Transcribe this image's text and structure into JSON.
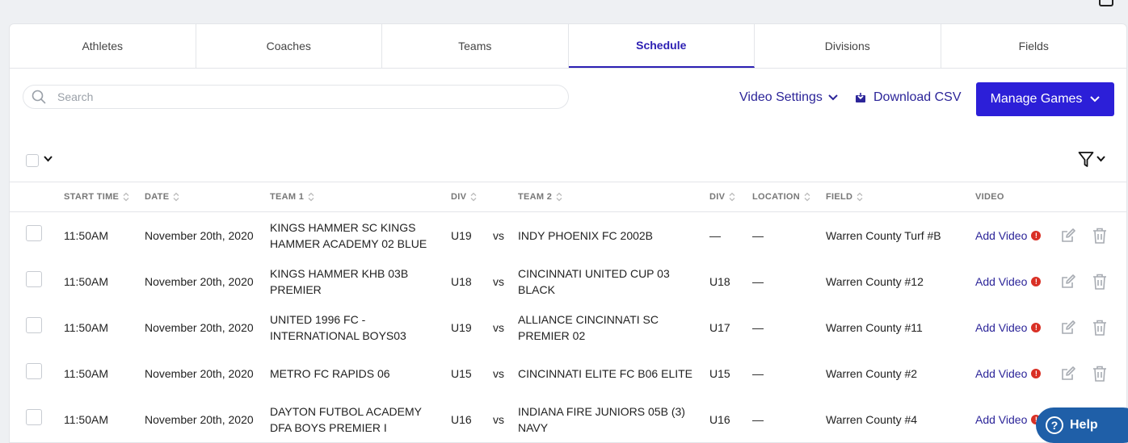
{
  "tabs": [
    {
      "label": "Athletes",
      "active": false
    },
    {
      "label": "Coaches",
      "active": false
    },
    {
      "label": "Teams",
      "active": false
    },
    {
      "label": "Schedule",
      "active": true
    },
    {
      "label": "Divisions",
      "active": false
    },
    {
      "label": "Fields",
      "active": false
    }
  ],
  "toolbar": {
    "search_placeholder": "Search",
    "video_settings_label": "Video Settings",
    "download_csv_label": "Download CSV",
    "manage_games_label": "Manage Games"
  },
  "table": {
    "columns": [
      "START TIME",
      "DATE",
      "TEAM 1",
      "DIV",
      "TEAM 2",
      "DIV",
      "LOCATION",
      "FIELD",
      "VIDEO"
    ],
    "rows": [
      {
        "start_time": "11:50AM",
        "date": "November 20th, 2020",
        "team1": "KINGS HAMMER SC KINGS HAMMER ACADEMY 02 BLUE",
        "div1": "U19",
        "vs": "vs",
        "team2": "INDY PHOENIX FC 2002B",
        "div2": "—",
        "location": "—",
        "field": "Warren County Turf #B",
        "video": "Add Video"
      },
      {
        "start_time": "11:50AM",
        "date": "November 20th, 2020",
        "team1": "KINGS HAMMER KHB 03B PREMIER",
        "div1": "U18",
        "vs": "vs",
        "team2": "CINCINNATI UNITED CUP 03 BLACK",
        "div2": "U18",
        "location": "—",
        "field": "Warren County #12",
        "video": "Add Video"
      },
      {
        "start_time": "11:50AM",
        "date": "November 20th, 2020",
        "team1": "UNITED 1996 FC - INTERNATIONAL BOYS03",
        "div1": "U19",
        "vs": "vs",
        "team2": "ALLIANCE CINCINNATI SC PREMIER 02",
        "div2": "U17",
        "location": "—",
        "field": "Warren County #11",
        "video": "Add Video"
      },
      {
        "start_time": "11:50AM",
        "date": "November 20th, 2020",
        "team1": "METRO FC RAPIDS 06",
        "div1": "U15",
        "vs": "vs",
        "team2": "CINCINNATI ELITE FC B06 ELITE",
        "div2": "U15",
        "location": "—",
        "field": "Warren County #2",
        "video": "Add Video"
      },
      {
        "start_time": "11:50AM",
        "date": "November 20th, 2020",
        "team1": "DAYTON FUTBOL ACADEMY DFA BOYS PREMIER I",
        "div1": "U16",
        "vs": "vs",
        "team2": "INDIANA FIRE JUNIORS 05B (3) NAVY",
        "div2": "U16",
        "location": "—",
        "field": "Warren County #4",
        "video": "Add Video"
      }
    ]
  },
  "help_label": "Help",
  "colors": {
    "accent": "#2c1fd8",
    "link": "#2c2599",
    "warning": "#d93025",
    "help": "#1f5fa8"
  }
}
